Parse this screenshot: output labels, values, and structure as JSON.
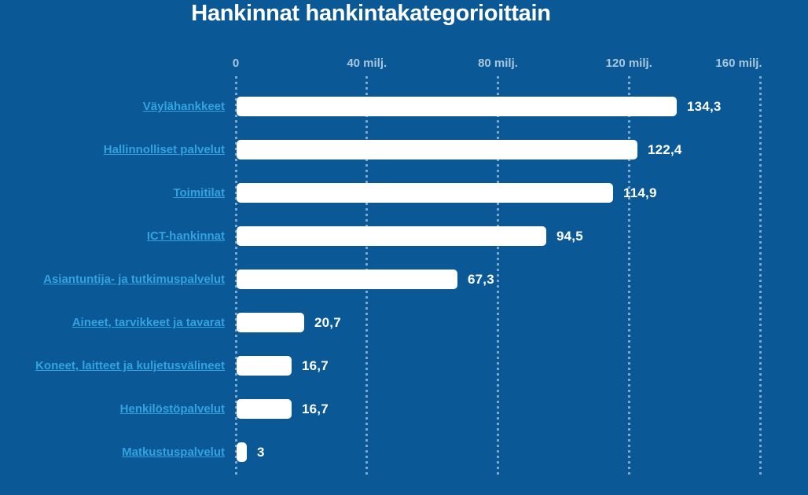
{
  "header": {
    "title": "Hankinnat hankintakategorioittain"
  },
  "chart_data": {
    "type": "bar",
    "orientation": "horizontal",
    "title": "Hankinnat hankintakategorioittain",
    "xlabel": "",
    "ylabel": "",
    "xlim": [
      0,
      160
    ],
    "grid": "dotted-vertical",
    "legend": "none",
    "x_ticks": [
      {
        "value": 0,
        "label": "0"
      },
      {
        "value": 40,
        "label": "40 milj."
      },
      {
        "value": 80,
        "label": "80 milj."
      },
      {
        "value": 120,
        "label": "120 milj."
      },
      {
        "value": 160,
        "label": "160 milj."
      }
    ],
    "categories": [
      "Väylähankkeet",
      "Hallinnolliset palvelut",
      "Toimitilat",
      "ICT-hankinnat",
      "Asiantuntija- ja tutkimuspalvelut",
      "Aineet, tarvikkeet ja tavarat",
      "Koneet, laitteet ja kuljetusvälineet",
      "Henkilöstöpalvelut",
      "Matkustuspalvelut"
    ],
    "values": [
      134.3,
      122.4,
      114.9,
      94.5,
      67.3,
      20.7,
      16.7,
      16.7,
      3
    ],
    "value_labels": [
      "134,3",
      "122,4",
      "114,9",
      "94,5",
      "67,3",
      "20,7",
      "16,7",
      "16,7",
      "3"
    ],
    "colors": {
      "background": "#0a5896",
      "bar": "#ffffff",
      "category_link": "#33a3e0",
      "axis_label": "#a9c7dd",
      "gridline": "#7fa9cc",
      "value_label": "#ffffff",
      "title": "#ffffff"
    }
  }
}
